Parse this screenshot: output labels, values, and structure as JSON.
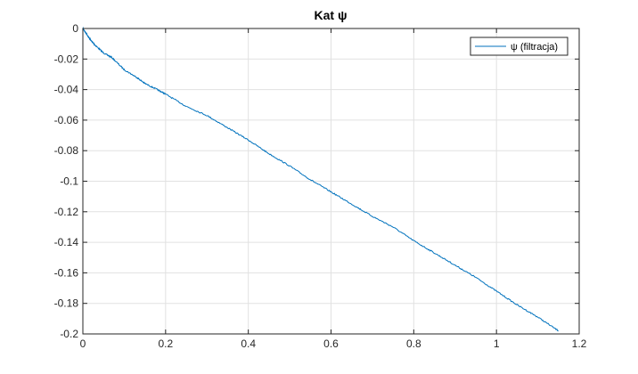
{
  "chart_data": {
    "type": "line",
    "title": "Kat ψ",
    "xlabel": "",
    "ylabel": "",
    "xlim": [
      0,
      1.2
    ],
    "ylim": [
      -0.2,
      0
    ],
    "x_ticks": [
      0,
      0.2,
      0.4,
      0.6,
      0.8,
      1,
      1.2
    ],
    "x_tick_labels": [
      "0",
      "0.2",
      "0.4",
      "0.6",
      "0.8",
      "1",
      "1.2"
    ],
    "y_ticks": [
      0,
      -0.02,
      -0.04,
      -0.06,
      -0.08,
      -0.1,
      -0.12,
      -0.14,
      -0.16,
      -0.18,
      -0.2
    ],
    "y_tick_labels": [
      "0",
      "-0.02",
      "-0.04",
      "-0.06",
      "-0.08",
      "-0.1",
      "-0.12",
      "-0.14",
      "-0.16",
      "-0.18",
      "-0.2"
    ],
    "grid": true,
    "legend": {
      "position": "top-right",
      "entries": [
        "ψ (filtracja)"
      ]
    },
    "series": [
      {
        "name": "ψ (filtracja)",
        "color": "#0072BD",
        "x": [
          0,
          0.01,
          0.02,
          0.03,
          0.05,
          0.07,
          0.1,
          0.13,
          0.15,
          0.18,
          0.2,
          0.25,
          0.3,
          0.35,
          0.4,
          0.45,
          0.5,
          0.55,
          0.6,
          0.65,
          0.7,
          0.75,
          0.8,
          0.85,
          0.9,
          0.95,
          1.0,
          1.05,
          1.1,
          1.15
        ],
        "y": [
          0,
          -0.004,
          -0.008,
          -0.011,
          -0.016,
          -0.019,
          -0.027,
          -0.032,
          -0.036,
          -0.04,
          -0.043,
          -0.051,
          -0.057,
          -0.065,
          -0.073,
          -0.082,
          -0.09,
          -0.099,
          -0.107,
          -0.115,
          -0.123,
          -0.13,
          -0.139,
          -0.147,
          -0.155,
          -0.163,
          -0.172,
          -0.181,
          -0.189,
          -0.198
        ]
      }
    ]
  }
}
